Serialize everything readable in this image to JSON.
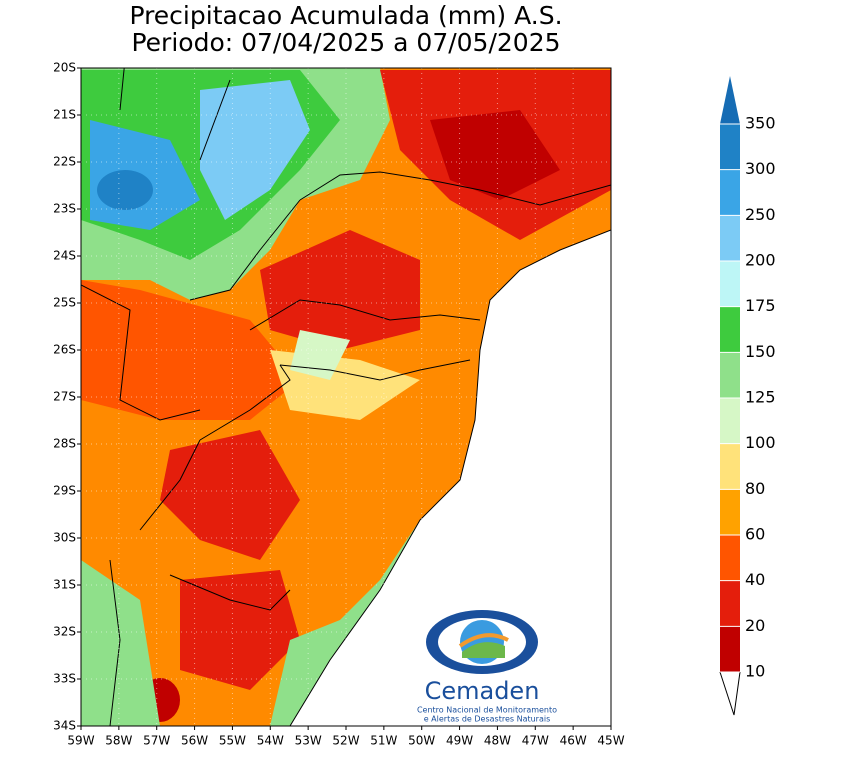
{
  "header": {
    "title": "Precipitacao Acumulada (mm) A.S.",
    "subtitle": "Periodo: 07/04/2025 a 07/05/2025"
  },
  "map": {
    "lat_labels": [
      "20S",
      "21S",
      "22S",
      "23S",
      "24S",
      "25S",
      "26S",
      "27S",
      "28S",
      "29S",
      "30S",
      "31S",
      "32S",
      "33S",
      "34S"
    ],
    "lon_labels": [
      "59W",
      "58W",
      "57W",
      "56W",
      "55W",
      "54W",
      "53W",
      "52W",
      "51W",
      "50W",
      "49W",
      "48W",
      "47W",
      "46W",
      "45W"
    ]
  },
  "colorbar": {
    "ticks": [
      10,
      20,
      40,
      60,
      80,
      100,
      125,
      150,
      175,
      200,
      250,
      300,
      350
    ],
    "colors": [
      "#c00000",
      "#e41e0c",
      "#ff5500",
      "#ffa200",
      "#ffe27a",
      "#d6f7c6",
      "#8fe08a",
      "#3ecb3e",
      "#bdf6f6",
      "#7ccbf5",
      "#3aa5e6",
      "#1f82c6"
    ],
    "top_color": "#166cb4"
  },
  "logo": {
    "name": "Cemaden",
    "line1": "Centro Nacional de Monitoramento",
    "line2": "e Alertas de Desastres Naturais"
  }
}
